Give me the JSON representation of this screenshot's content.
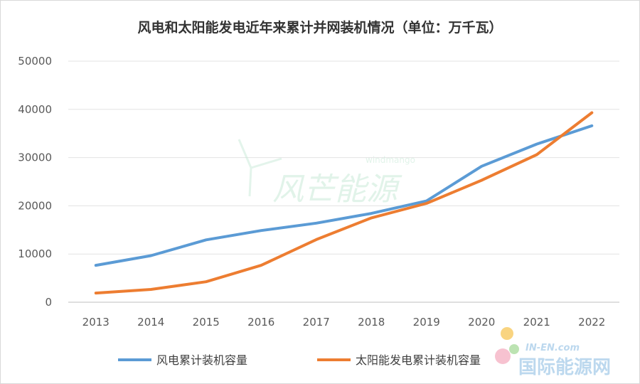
{
  "chart_data": {
    "type": "line",
    "title": "风电和太阳能发电近年来累计并网装机情况（单位：万千瓦）",
    "xlabel": "",
    "ylabel": "",
    "categories": [
      "2013",
      "2014",
      "2015",
      "2016",
      "2017",
      "2018",
      "2019",
      "2020",
      "2021",
      "2022"
    ],
    "ylim": [
      0,
      50000
    ],
    "yticks": [
      0,
      10000,
      20000,
      30000,
      40000,
      50000
    ],
    "grid": true,
    "legend_position": "bottom",
    "series": [
      {
        "name": "风电累计装机容量",
        "color": "#5b9bd5",
        "values": [
          7650,
          9660,
          12930,
          14860,
          16400,
          18420,
          21000,
          28200,
          32800,
          36600
        ]
      },
      {
        "name": "太阳能发电累计装机容量",
        "color": "#ed7d31",
        "values": [
          1900,
          2650,
          4250,
          7650,
          13000,
          17500,
          20500,
          25300,
          30600,
          39300
        ]
      }
    ]
  },
  "watermarks": {
    "center": "风芒能源",
    "center_small": "windmango",
    "corner_small": "IN-EN.com",
    "corner": "国际能源网"
  }
}
